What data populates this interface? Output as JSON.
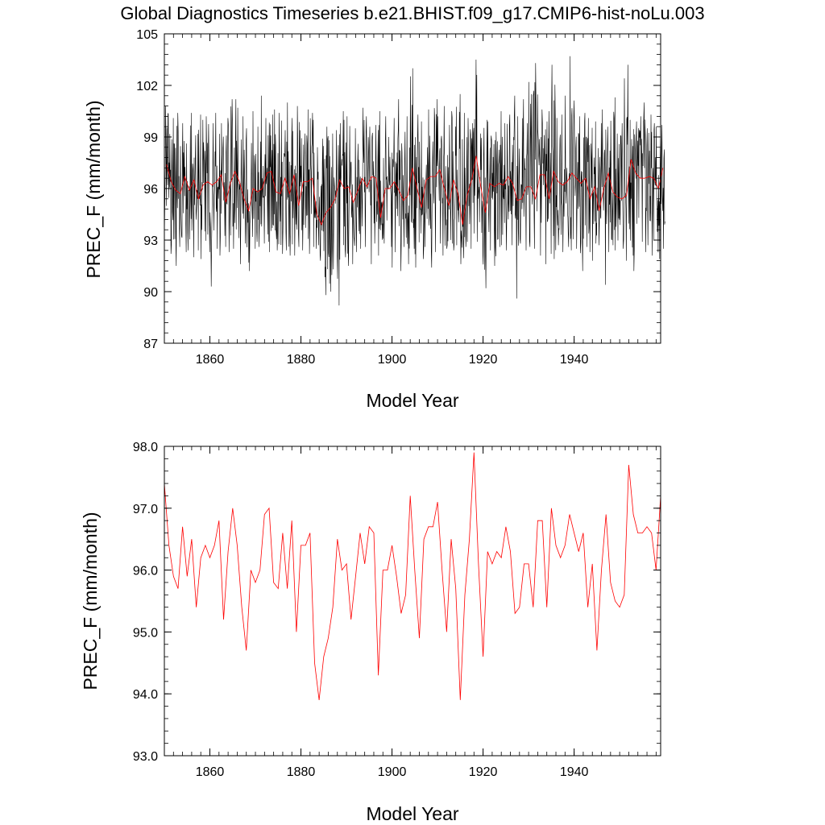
{
  "page_title": "Global Diagnostics Timeseries b.e21.BHIST.f09_g17.CMIP6-hist-noLu.003",
  "colors": {
    "monthly": "#000000",
    "annual": "#ff0000",
    "frame": "#000000",
    "background": "#ffffff"
  },
  "chart_data": [
    {
      "type": "line",
      "title": "Global Diagnostics Timeseries b.e21.BHIST.f09_g17.CMIP6-hist-noLu.003",
      "xlabel": "Model Year",
      "ylabel": "PREC_F (mm/month)",
      "xlim": [
        1850,
        1959
      ],
      "ylim": [
        87,
        105
      ],
      "xticks": [
        "1860",
        "1880",
        "1900",
        "1920",
        "1940"
      ],
      "yticks": [
        "87",
        "90",
        "93",
        "96",
        "99",
        "102",
        "105"
      ],
      "grid": false,
      "series": [
        {
          "role": "monthly",
          "color": "#000000",
          "resolution": "monthly (12 values per year)",
          "envelope_min_by_year": [
            93.8,
            92.2,
            91.5,
            92.6,
            92.3,
            92.4,
            92.0,
            92.4,
            91.9,
            92.3,
            90.3,
            92.5,
            92.1,
            92.6,
            92.3,
            92.5,
            91.6,
            92.8,
            91.2,
            92.5,
            92.6,
            92.8,
            92.9,
            92.3,
            92.4,
            92.2,
            92.4,
            92.1,
            92.1,
            92.6,
            92.4,
            92.2,
            92.6,
            92.5,
            91.8,
            89.8,
            90.0,
            91.3,
            89.2,
            92.0,
            91.5,
            91.6,
            92.3,
            92.5,
            92.6,
            91.6,
            92.8,
            92.1,
            92.8,
            92.6,
            91.4,
            91.2,
            92.6,
            91.6,
            92.5,
            91.4,
            91.9,
            92.6,
            91.4,
            92.3,
            92.8,
            92.1,
            92.5,
            92.4,
            92.7,
            91.6,
            92.6,
            92.5,
            92.9,
            92.1,
            90.2,
            92.4,
            91.5,
            92.6,
            92.7,
            92.4,
            92.7,
            89.6,
            92.8,
            92.4,
            92.6,
            92.5,
            92.1,
            91.6,
            92.2,
            91.9,
            92.7,
            92.3,
            92.6,
            92.4,
            92.5,
            91.2,
            92.6,
            92.3,
            91.8,
            92.7,
            90.4,
            92.3,
            92.7,
            92.4,
            92.5,
            91.8,
            92.1,
            91.2,
            92.9,
            92.3,
            92.7,
            92.1,
            91.9,
            92.5
          ],
          "envelope_max_by_year": [
            100.8,
            100.1,
            100.4,
            99.3,
            99.8,
            100.4,
            99.1,
            100.3,
            100.0,
            100.2,
            99.8,
            100.4,
            99.8,
            100.1,
            101.2,
            101.2,
            100.7,
            100.2,
            99.5,
            100.5,
            99.6,
            101.4,
            100.1,
            100.3,
            100.6,
            100.4,
            99.4,
            101.0,
            100.1,
            100.8,
            99.2,
            100.6,
            100.4,
            98.4,
            98.9,
            99.6,
            99.2,
            99.4,
            99.8,
            100.5,
            100.2,
            99.5,
            98.6,
            100.7,
            100.2,
            99.6,
            99.7,
            100.5,
            100.2,
            99.0,
            100.1,
            101.2,
            99.3,
            100.2,
            103.0,
            100.3,
            99.9,
            98.4,
            100.6,
            101.2,
            100.2,
            100.8,
            99.7,
            100.5,
            101.5,
            100.4,
            100.1,
            99.8,
            103.5,
            99.2,
            100.0,
            99.9,
            99.3,
            100.5,
            99.8,
            100.3,
            101.4,
            100.2,
            101.2,
            99.8,
            102.2,
            103.3,
            100.6,
            99.8,
            100.5,
            103.2,
            100.1,
            100.3,
            101.4,
            103.7,
            100.0,
            100.2,
            100.4,
            100.1,
            99.9,
            99.8,
            100.6,
            99.6,
            101.3,
            99.2,
            99.8,
            103.2,
            100.0,
            99.9,
            100.2,
            101.0,
            100.3,
            99.8,
            99.6,
            99.7
          ]
        },
        {
          "role": "annual",
          "color": "#ff0000",
          "resolution": "annual mean, plotted at mid-year",
          "values": [
            97.4,
            96.4,
            95.9,
            95.7,
            96.7,
            95.9,
            96.5,
            95.4,
            96.2,
            96.4,
            96.2,
            96.4,
            96.8,
            95.2,
            96.3,
            97.0,
            96.4,
            95.4,
            94.7,
            96.0,
            95.8,
            96.0,
            96.9,
            97.0,
            95.8,
            95.7,
            96.6,
            95.7,
            96.8,
            95.0,
            96.4,
            96.4,
            96.6,
            94.5,
            93.9,
            94.6,
            94.9,
            95.4,
            96.5,
            96.0,
            96.1,
            95.2,
            95.9,
            96.6,
            96.1,
            96.7,
            96.6,
            94.3,
            96.0,
            96.0,
            96.4,
            95.9,
            95.3,
            95.6,
            97.2,
            96.0,
            94.9,
            96.5,
            96.7,
            96.7,
            97.1,
            96.0,
            95.0,
            96.5,
            95.7,
            93.9,
            95.6,
            96.5,
            97.9,
            96.1,
            94.6,
            96.3,
            96.1,
            96.3,
            96.2,
            96.7,
            96.3,
            95.3,
            95.4,
            96.1,
            96.1,
            95.4,
            96.8,
            96.8,
            95.4,
            97.0,
            96.4,
            96.2,
            96.4,
            96.9,
            96.6,
            96.3,
            96.6,
            95.4,
            96.1,
            94.7,
            96.0,
            96.9,
            95.8,
            95.5,
            95.4,
            95.6,
            97.7,
            96.9,
            96.6,
            96.6,
            96.7,
            96.6,
            96.0,
            97.2
          ]
        }
      ]
    },
    {
      "type": "line",
      "xlabel": "Model Year",
      "ylabel": "PREC_F (mm/month)",
      "xlim": [
        1850,
        1959
      ],
      "ylim": [
        93,
        98
      ],
      "xticks": [
        "1860",
        "1880",
        "1900",
        "1920",
        "1940"
      ],
      "yticks": [
        "93.0",
        "94.0",
        "95.0",
        "96.0",
        "97.0",
        "98.0"
      ],
      "grid": false,
      "series": [
        {
          "role": "annual",
          "color": "#ff0000",
          "x_start": 1850,
          "x_step": 1,
          "values": [
            97.4,
            96.4,
            95.9,
            95.7,
            96.7,
            95.9,
            96.5,
            95.4,
            96.2,
            96.4,
            96.2,
            96.4,
            96.8,
            95.2,
            96.3,
            97.0,
            96.4,
            95.4,
            94.7,
            96.0,
            95.8,
            96.0,
            96.9,
            97.0,
            95.8,
            95.7,
            96.6,
            95.7,
            96.8,
            95.0,
            96.4,
            96.4,
            96.6,
            94.5,
            93.9,
            94.6,
            94.9,
            95.4,
            96.5,
            96.0,
            96.1,
            95.2,
            95.9,
            96.6,
            96.1,
            96.7,
            96.6,
            94.3,
            96.0,
            96.0,
            96.4,
            95.9,
            95.3,
            95.6,
            97.2,
            96.0,
            94.9,
            96.5,
            96.7,
            96.7,
            97.1,
            96.0,
            95.0,
            96.5,
            95.7,
            93.9,
            95.6,
            96.5,
            97.9,
            96.1,
            94.6,
            96.3,
            96.1,
            96.3,
            96.2,
            96.7,
            96.3,
            95.3,
            95.4,
            96.1,
            96.1,
            95.4,
            96.8,
            96.8,
            95.4,
            97.0,
            96.4,
            96.2,
            96.4,
            96.9,
            96.6,
            96.3,
            96.6,
            95.4,
            96.1,
            94.7,
            96.0,
            96.9,
            95.8,
            95.5,
            95.4,
            95.6,
            97.7,
            96.9,
            96.6,
            96.6,
            96.7,
            96.6,
            96.0,
            97.2
          ]
        }
      ]
    }
  ]
}
